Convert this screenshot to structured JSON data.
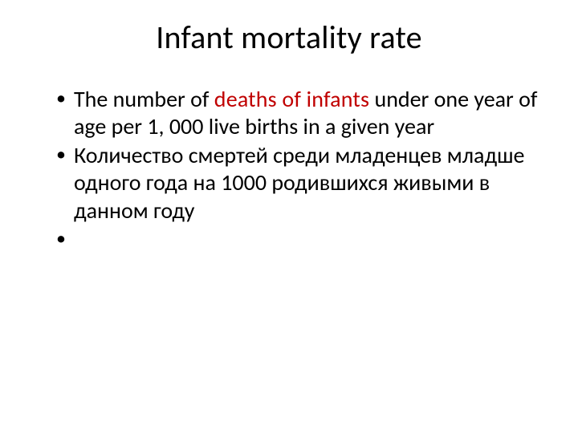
{
  "title": "Infant mortality rate",
  "bullets": [
    {
      "pre": "The number of ",
      "emph": "deaths of infants",
      "post": " under one year of age per 1, 000 live births in a given year"
    },
    {
      "text": "Количество смертей среди младенцев младше одного года  на 1000 родившихся живыми в данном году"
    },
    {
      "text": ""
    }
  ],
  "colors": {
    "emphasis": "#c00000",
    "text": "#000000",
    "background": "#ffffff"
  },
  "typography": {
    "title_fontsize": 40,
    "body_fontsize": 28,
    "font_family": "Calibri"
  }
}
